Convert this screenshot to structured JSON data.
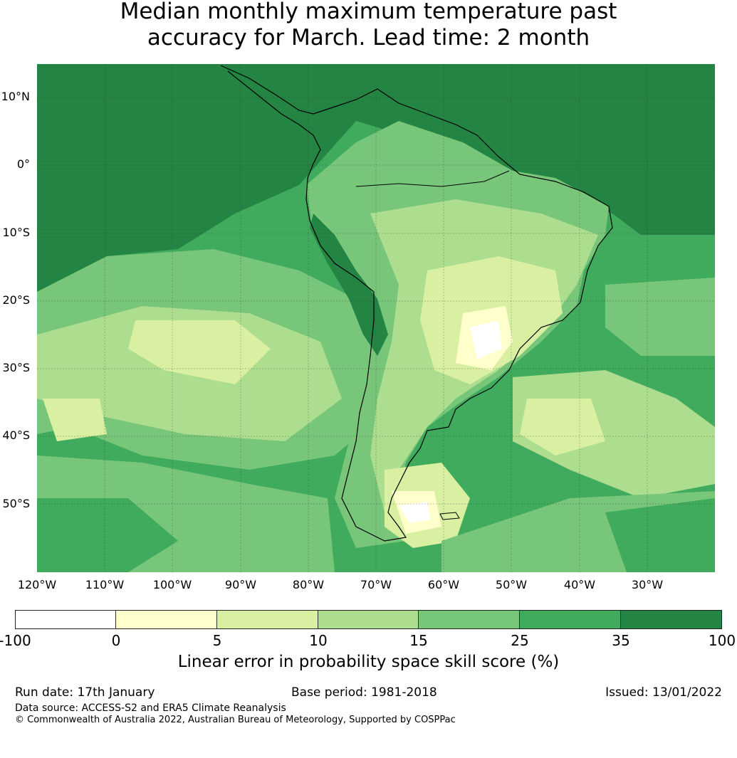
{
  "title": {
    "line1": "Median monthly maximum temperature past",
    "line2": "accuracy for March. Lead time: 2 month"
  },
  "map": {
    "lat_labels": [
      "10°N",
      "0°",
      "10°S",
      "20°S",
      "30°S",
      "40°S",
      "50°S"
    ],
    "lon_labels": [
      "120°W",
      "110°W",
      "100°W",
      "90°W",
      "80°W",
      "70°W",
      "60°W",
      "50°W",
      "40°W",
      "30°W"
    ],
    "extent": {
      "lon_min": -120,
      "lon_max": -20,
      "lat_min": -60,
      "lat_max": 15
    }
  },
  "colorbar": {
    "ticks": [
      "-100",
      "0",
      "5",
      "10",
      "15",
      "25",
      "35",
      "100"
    ],
    "colors": [
      "#ffffff",
      "#ffffcc",
      "#d9f0a3",
      "#addd8e",
      "#78c679",
      "#41ab5d",
      "#238443"
    ],
    "label": "Linear error in probability space skill score (%)"
  },
  "footer": {
    "run_date": "Run date: 17th January",
    "base_period": "Base period: 1981-2018",
    "issued": "Issued: 13/01/2022",
    "data_source": "Data source: ACCESS-S2 and ERA5 Climate Reanalysis",
    "copyright": "© Commonwealth of Australia 2022, Australian Bureau of Meteorology, Supported by COSPPac"
  }
}
